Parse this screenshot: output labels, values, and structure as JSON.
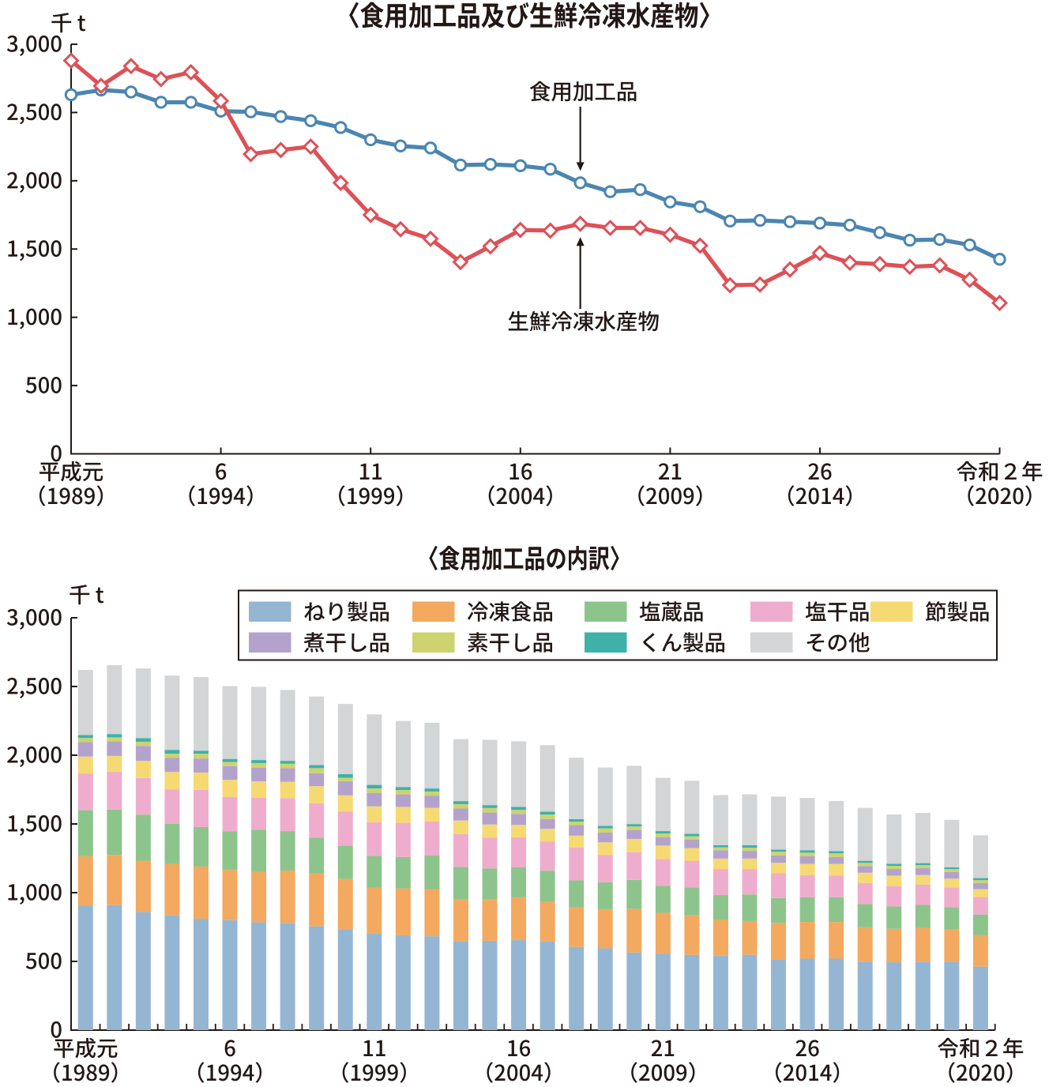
{
  "page": {
    "background": "#ffffff",
    "ink_color": "#231815"
  },
  "chart_data": [
    {
      "type": "line",
      "title": "〈食用加工品及び生鮮冷凍水産物〉",
      "unit_label": "千 t",
      "ylabel": "千 t",
      "xlabel": "",
      "ylim": [
        0,
        3000
      ],
      "grid": false,
      "legend_position": "none",
      "ytick_values": [
        0,
        500,
        1000,
        1500,
        2000,
        2500,
        3000
      ],
      "ytick_labels": [
        "0",
        "500",
        "1,000",
        "1,500",
        "2,000",
        "2,500",
        "3,000"
      ],
      "x": [
        1989,
        1990,
        1991,
        1992,
        1993,
        1994,
        1995,
        1996,
        1997,
        1998,
        1999,
        2000,
        2001,
        2002,
        2003,
        2004,
        2005,
        2006,
        2007,
        2008,
        2009,
        2010,
        2011,
        2012,
        2013,
        2014,
        2015,
        2016,
        2017,
        2018,
        2019,
        2020
      ],
      "xtick_indices": [
        0,
        5,
        10,
        15,
        20,
        25,
        31
      ],
      "xtick_labels_line1": [
        "平成元",
        "6",
        "11",
        "16",
        "21",
        "26",
        "令和２年"
      ],
      "xtick_labels_line2": [
        "（1989）",
        "（1994）",
        "（1999）",
        "（2004）",
        "（2009）",
        "（2014）",
        "（2020）"
      ],
      "series": [
        {
          "name": "食用加工品",
          "marker": "circle",
          "color": "#4b86b1",
          "values": [
            2630,
            2665,
            2650,
            2575,
            2575,
            2510,
            2505,
            2470,
            2440,
            2390,
            2300,
            2255,
            2240,
            2115,
            2120,
            2110,
            2085,
            1985,
            1920,
            1935,
            1845,
            1810,
            1705,
            1710,
            1700,
            1690,
            1675,
            1620,
            1565,
            1570,
            1530,
            1425
          ]
        },
        {
          "name": "生鮮冷凍水産物",
          "marker": "diamond",
          "color": "#dd5157",
          "values": [
            2880,
            2695,
            2840,
            2745,
            2795,
            2585,
            2195,
            2225,
            2250,
            1985,
            1750,
            1645,
            1575,
            1405,
            1520,
            1640,
            1635,
            1685,
            1655,
            1655,
            1605,
            1525,
            1235,
            1240,
            1350,
            1470,
            1400,
            1390,
            1370,
            1380,
            1275,
            1105
          ]
        }
      ],
      "annotations": [
        {
          "text": "食用加工品",
          "target_series": 0,
          "target_year": 2006,
          "label_side": "above"
        },
        {
          "text": "生鮮冷凍水産物",
          "target_series": 1,
          "target_year": 2006,
          "label_side": "below"
        }
      ]
    },
    {
      "type": "bar",
      "stacked": true,
      "title": "〈食用加工品の内訳〉",
      "unit_label": "千 t",
      "ylabel": "千 t",
      "xlabel": "",
      "ylim": [
        0,
        3000
      ],
      "grid": false,
      "legend_position": "top",
      "ytick_values": [
        0,
        500,
        1000,
        1500,
        2000,
        2500,
        3000
      ],
      "ytick_labels": [
        "0",
        "500",
        "1,000",
        "1,500",
        "2,000",
        "2,500",
        "3,000"
      ],
      "categories": [
        1989,
        1990,
        1991,
        1992,
        1993,
        1994,
        1995,
        1996,
        1997,
        1998,
        1999,
        2000,
        2001,
        2002,
        2003,
        2004,
        2005,
        2006,
        2007,
        2008,
        2009,
        2010,
        2011,
        2012,
        2013,
        2014,
        2015,
        2016,
        2017,
        2018,
        2019,
        2020
      ],
      "xtick_indices": [
        0,
        5,
        10,
        15,
        20,
        25,
        31
      ],
      "xtick_labels_line1": [
        "平成元",
        "6",
        "11",
        "16",
        "21",
        "26",
        "令和２年"
      ],
      "xtick_labels_line2": [
        "（1989）",
        "（1994）",
        "（1999）",
        "（2004）",
        "（2009）",
        "（2014）",
        "（2020）"
      ],
      "series": [
        {
          "name": "ねり製品",
          "color": "#95b6d3",
          "values": [
            905,
            910,
            860,
            835,
            810,
            800,
            785,
            780,
            755,
            735,
            705,
            690,
            683,
            645,
            650,
            655,
            645,
            605,
            595,
            565,
            555,
            548,
            542,
            548,
            515,
            520,
            520,
            498,
            494,
            498,
            498,
            462
          ]
        },
        {
          "name": "冷凍食品",
          "color": "#f3a960",
          "values": [
            360,
            365,
            373,
            375,
            380,
            365,
            365,
            380,
            384,
            365,
            330,
            341,
            343,
            304,
            304,
            311,
            287,
            288,
            285,
            318,
            299,
            287,
            260,
            246,
            266,
            267,
            267,
            250,
            243,
            246,
            235,
            228
          ]
        },
        {
          "name": "塩蔵品",
          "color": "#8dc48c",
          "values": [
            335,
            330,
            335,
            290,
            287,
            282,
            308,
            288,
            261,
            239,
            233,
            228,
            244,
            239,
            223,
            218,
            228,
            196,
            195,
            210,
            196,
            202,
            181,
            193,
            180,
            179,
            179,
            169,
            163,
            167,
            162,
            151
          ]
        },
        {
          "name": "塩干品",
          "color": "#efadcd",
          "values": [
            265,
            275,
            267,
            252,
            271,
            250,
            233,
            240,
            250,
            250,
            245,
            249,
            249,
            239,
            224,
            218,
            213,
            239,
            200,
            202,
            195,
            195,
            189,
            185,
            180,
            162,
            158,
            153,
            148,
            148,
            142,
            127
          ]
        },
        {
          "name": "節製品",
          "color": "#f5d973",
          "values": [
            125,
            115,
            124,
            126,
            126,
            124,
            119,
            119,
            125,
            119,
            115,
            116,
            98,
            98,
            95,
            91,
            91,
            87,
            91,
            96,
            98,
            92,
            76,
            76,
            76,
            82,
            86,
            75,
            76,
            69,
            65,
            58
          ]
        },
        {
          "name": "煮干し品",
          "color": "#b3a3cc",
          "values": [
            105,
            105,
            109,
            102,
            102,
            100,
            100,
            98,
            94,
            102,
            98,
            91,
            89,
            87,
            87,
            80,
            72,
            76,
            71,
            65,
            61,
            61,
            61,
            56,
            54,
            55,
            49,
            49,
            48,
            50,
            48,
            44
          ]
        },
        {
          "name": "素干し品",
          "color": "#cdd36e",
          "values": [
            30,
            30,
            30,
            31,
            35,
            30,
            33,
            33,
            37,
            26,
            32,
            32,
            30,
            32,
            33,
            29,
            32,
            26,
            31,
            26,
            26,
            25,
            21,
            23,
            27,
            26,
            28,
            23,
            23,
            22,
            22,
            21
          ]
        },
        {
          "name": "くん製品",
          "color": "#3eb1a9",
          "values": [
            22,
            24,
            26,
            28,
            22,
            22,
            22,
            21,
            22,
            26,
            26,
            22,
            22,
            22,
            21,
            22,
            22,
            18,
            18,
            17,
            18,
            18,
            15,
            18,
            15,
            18,
            15,
            15,
            15,
            15,
            12,
            15
          ]
        },
        {
          "name": "その他",
          "color": "#d3d5d6",
          "values": [
            473,
            501,
            507,
            540,
            536,
            530,
            532,
            516,
            499,
            511,
            513,
            480,
            478,
            451,
            475,
            477,
            483,
            447,
            424,
            424,
            388,
            386,
            365,
            370,
            386,
            380,
            365,
            385,
            359,
            365,
            346,
            311
          ]
        }
      ]
    }
  ]
}
